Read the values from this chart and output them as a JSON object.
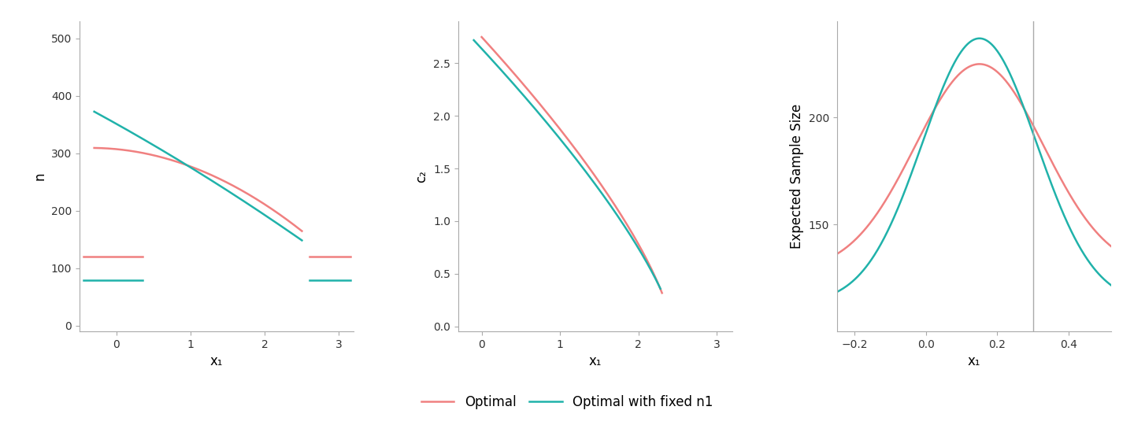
{
  "color_optimal": "#F08080",
  "color_fixed": "#20B2AA",
  "lw": 1.8,
  "plot1": {
    "xlabel": "x₁",
    "ylabel": "n",
    "xlim": [
      -0.5,
      3.2
    ],
    "ylim": [
      -10,
      530
    ],
    "yticks": [
      0,
      100,
      200,
      300,
      400,
      500
    ],
    "xticks": [
      0,
      1,
      2,
      3
    ],
    "hline_optimal_y": 120,
    "hline_fixed_y": 80,
    "hline_left_x1": -0.45,
    "hline_left_x2": 0.35,
    "hline_right_x1": 2.6,
    "hline_right_x2": 3.15
  },
  "plot2": {
    "xlabel": "x₁",
    "ylabel": "c₂",
    "xlim": [
      -0.3,
      3.2
    ],
    "ylim": [
      -0.05,
      2.9
    ],
    "yticks": [
      0.0,
      0.5,
      1.0,
      1.5,
      2.0,
      2.5
    ],
    "xticks": [
      0,
      1,
      2,
      3
    ]
  },
  "plot3": {
    "xlabel": "x₁",
    "ylabel": "Expected Sample Size",
    "xlim": [
      -0.25,
      0.52
    ],
    "ylim": [
      100,
      245
    ],
    "yticks": [
      150,
      200
    ],
    "xticks": [
      -0.2,
      0.0,
      0.2,
      0.4
    ],
    "vline_x": 0.3
  },
  "legend_labels": [
    "Optimal",
    "Optimal with fixed n1"
  ],
  "background_color": "#FFFFFF",
  "panel_background": "#FFFFFF",
  "spine_color": "#AAAAAA"
}
